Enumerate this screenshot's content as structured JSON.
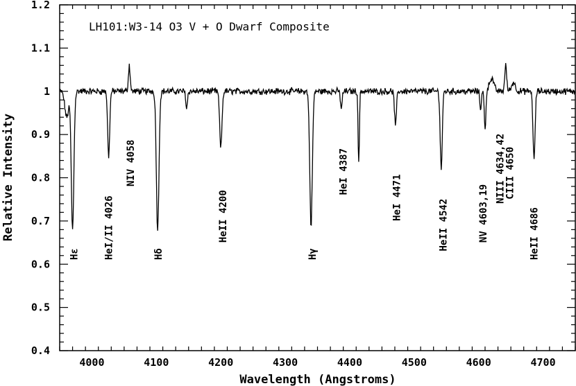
{
  "chart_data": {
    "type": "line",
    "title": "LH101:W3-14   O3 V + O Dwarf Composite",
    "xlabel": "Wavelength (Angstroms)",
    "ylabel": "Relative Intensity",
    "xlim": [
      3950,
      4750
    ],
    "ylim": [
      0.4,
      1.2
    ],
    "x_ticks": [
      4000,
      4100,
      4200,
      4300,
      4400,
      4500,
      4600,
      4700
    ],
    "y_ticks": [
      0.4,
      0.5,
      0.6,
      0.7,
      0.8,
      0.9,
      1,
      1.1,
      1.2
    ],
    "y_tick_labels": [
      "0.4",
      "0.5",
      "0.6",
      "0.7",
      "0.8",
      "0.9",
      "1",
      "1.1",
      "1.2"
    ],
    "grid": false,
    "continuum": 1.0,
    "noise": 0.006,
    "series": [
      {
        "features": [
          {
            "x": 3970,
            "depth": -0.32,
            "width": 2.0
          },
          {
            "x": 3961,
            "depth": -0.06,
            "width": 3.0
          },
          {
            "x": 4026,
            "depth": -0.15,
            "width": 1.6
          },
          {
            "x": 4058,
            "depth": 0.06,
            "width": 1.4
          },
          {
            "x": 4102,
            "depth": -0.32,
            "width": 2.0
          },
          {
            "x": 4147,
            "depth": -0.04,
            "width": 1.2
          },
          {
            "x": 4200,
            "depth": -0.13,
            "width": 1.8
          },
          {
            "x": 4340,
            "depth": -0.31,
            "width": 2.0
          },
          {
            "x": 4387,
            "depth": -0.04,
            "width": 1.3
          },
          {
            "x": 4414,
            "depth": -0.17,
            "width": 1.0
          },
          {
            "x": 4471,
            "depth": -0.08,
            "width": 1.5
          },
          {
            "x": 4542,
            "depth": -0.18,
            "width": 1.6
          },
          {
            "x": 4603,
            "depth": -0.04,
            "width": 1.2
          },
          {
            "x": 4610,
            "depth": -0.09,
            "width": 1.2
          },
          {
            "x": 4620,
            "depth": 0.03,
            "width": 3.5
          },
          {
            "x": 4642,
            "depth": 0.06,
            "width": 1.5
          },
          {
            "x": 4654,
            "depth": 0.02,
            "width": 3.0
          },
          {
            "x": 4686,
            "depth": -0.16,
            "width": 1.6
          }
        ]
      }
    ],
    "annotations": [
      {
        "text": "Hε",
        "x": 3972,
        "y": 0.61
      },
      {
        "text": "HeI/II 4026",
        "x": 4026,
        "y": 0.61
      },
      {
        "text": "NIV 4058",
        "x": 4060,
        "y": 0.78
      },
      {
        "text": "Hδ",
        "x": 4103,
        "y": 0.61
      },
      {
        "text": "HeII 4200",
        "x": 4203,
        "y": 0.65
      },
      {
        "text": "Hγ",
        "x": 4342,
        "y": 0.61
      },
      {
        "text": "HeI 4387",
        "x": 4390,
        "y": 0.76
      },
      {
        "text": "HeI 4471",
        "x": 4473,
        "y": 0.7
      },
      {
        "text": "HeII 4542",
        "x": 4545,
        "y": 0.63
      },
      {
        "text": "NV 4603,19",
        "x": 4607,
        "y": 0.65
      },
      {
        "text": "NIII 4634,42",
        "x": 4633,
        "y": 0.74
      },
      {
        "text": "CIII 4650",
        "x": 4648,
        "y": 0.75
      },
      {
        "text": "HeII 4686",
        "x": 4686,
        "y": 0.61
      }
    ]
  }
}
